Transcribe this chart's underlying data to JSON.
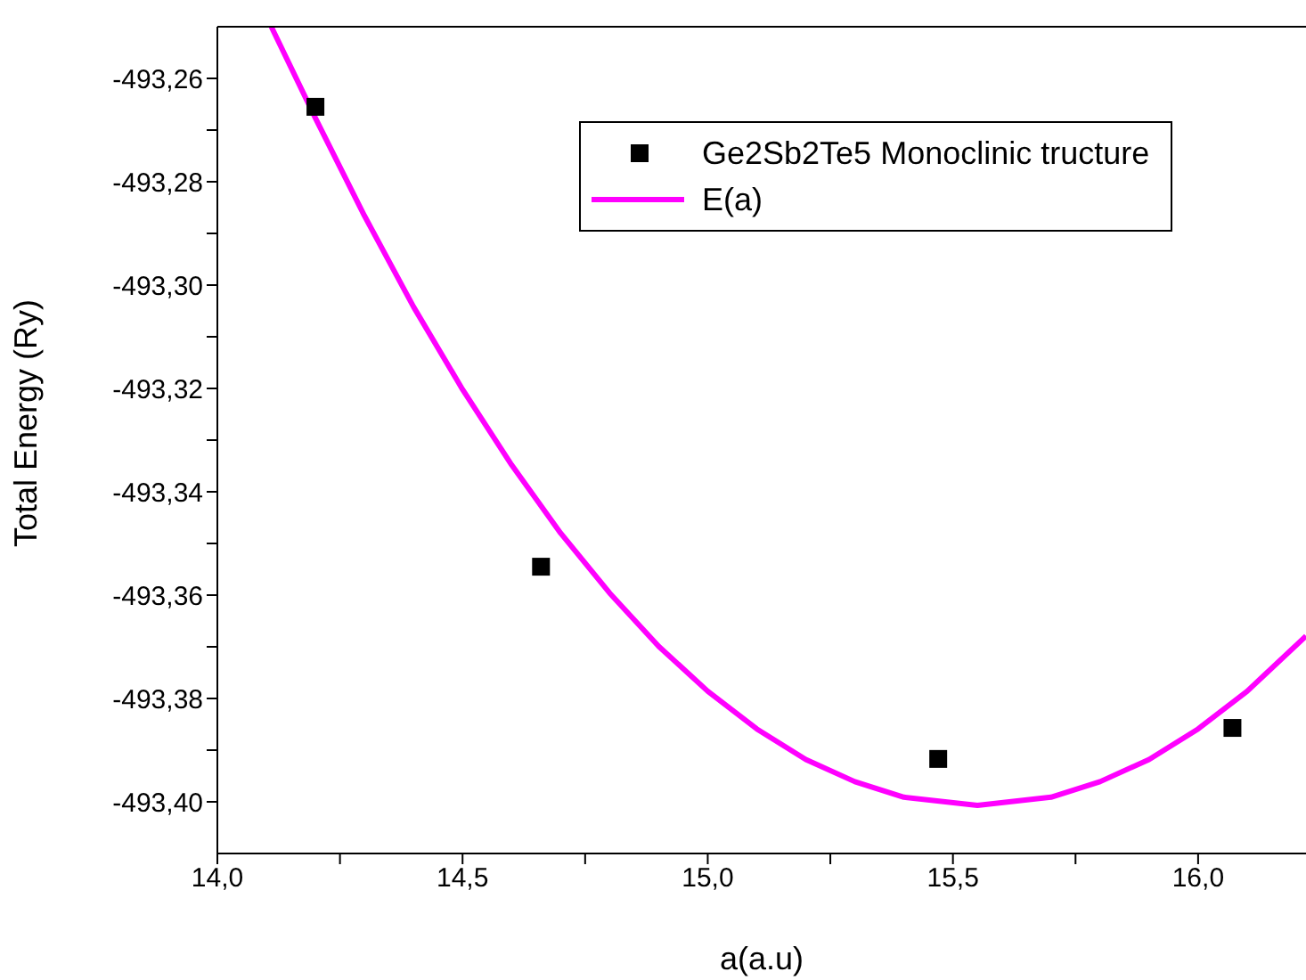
{
  "chart_data": {
    "type": "scatter",
    "xlabel": "a(a.u)",
    "ylabel": "Total Energy (Ry)",
    "xlim": [
      14,
      16.22
    ],
    "ylim": [
      -493.41,
      -493.25
    ],
    "xticks": [
      {
        "value": 14,
        "label": "14,0"
      },
      {
        "value": 14.25,
        "label": null
      },
      {
        "value": 14.5,
        "label": "14,5"
      },
      {
        "value": 14.75,
        "label": null
      },
      {
        "value": 15,
        "label": "15,0"
      },
      {
        "value": 15.25,
        "label": null
      },
      {
        "value": 15.5,
        "label": "15,5"
      },
      {
        "value": 15.75,
        "label": null
      },
      {
        "value": 16,
        "label": "16,0"
      }
    ],
    "yticks": [
      {
        "value": -493.26,
        "label": "-493,26"
      },
      {
        "value": -493.27,
        "label": null
      },
      {
        "value": -493.28,
        "label": "-493,28"
      },
      {
        "value": -493.29,
        "label": null
      },
      {
        "value": -493.3,
        "label": "-493,30"
      },
      {
        "value": -493.31,
        "label": null
      },
      {
        "value": -493.32,
        "label": "-493,32"
      },
      {
        "value": -493.33,
        "label": null
      },
      {
        "value": -493.34,
        "label": "-493,34"
      },
      {
        "value": -493.35,
        "label": null
      },
      {
        "value": -493.36,
        "label": "-493,36"
      },
      {
        "value": -493.37,
        "label": null
      },
      {
        "value": -493.38,
        "label": "-493,38"
      },
      {
        "value": -493.39,
        "label": null
      },
      {
        "value": -493.4,
        "label": "-493,40"
      }
    ],
    "grid": false,
    "legend": "top right",
    "series": [
      {
        "name": "Ge2Sb2Te5 Monoclinic tructure",
        "marker": "square",
        "color": "#000000",
        "x": [
          14.2,
          14.66,
          15.47,
          16.07
        ],
        "values": [
          -493.2655,
          -493.3545,
          -493.3917,
          -493.3857
        ]
      },
      {
        "name": "E(a)",
        "type": "line",
        "marker": "none",
        "line_style": "solid",
        "color": "#ff00ff",
        "x": [
          14.11,
          14.2,
          14.3,
          14.4,
          14.5,
          14.6,
          14.7,
          14.8,
          14.9,
          15.0,
          15.1,
          15.2,
          15.3,
          15.4,
          15.55,
          15.7,
          15.8,
          15.9,
          16.0,
          16.1,
          16.22
        ],
        "values": [
          -493.25,
          -493.2677,
          -493.2866,
          -493.3042,
          -493.3202,
          -493.3348,
          -493.348,
          -493.3596,
          -493.3699,
          -493.3786,
          -493.3859,
          -493.3918,
          -493.3961,
          -493.3991,
          -493.4007,
          -493.3991,
          -493.3961,
          -493.3918,
          -493.3859,
          -493.3786,
          -493.3679
        ]
      }
    ]
  }
}
